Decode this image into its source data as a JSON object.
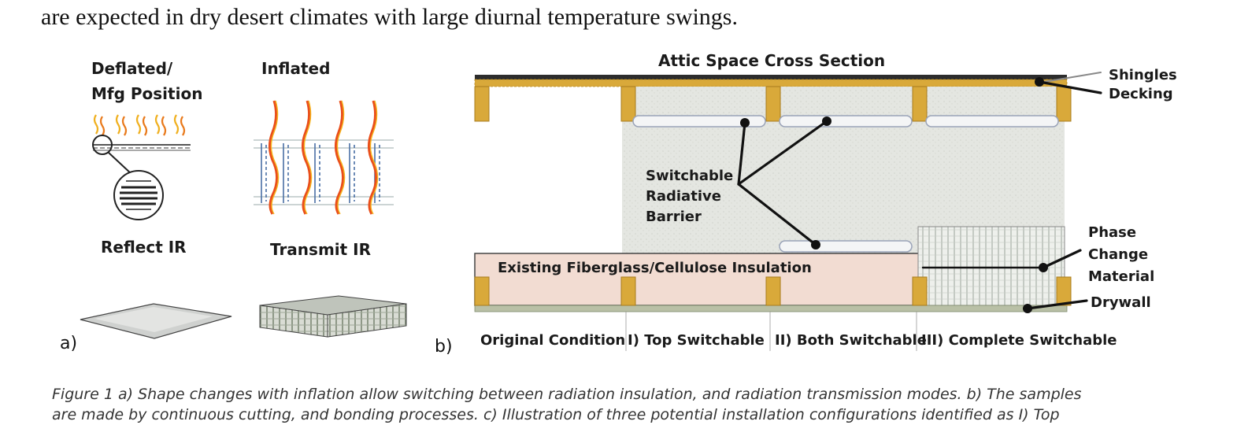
{
  "body_text": {
    "clipped_line": "are expected in dry desert climates with large diurnal temperature swings.",
    "partial_top": "... are expected in dry ... with large diurnal temperature swings."
  },
  "panel_a": {
    "col1_title_line1": "Deflated/",
    "col1_title_line2": "Mfg Position",
    "col2_title": "Inflated",
    "col1_caption": "Reflect IR",
    "col2_caption": "Transmit IR",
    "label": "a)"
  },
  "panel_b": {
    "title": "Attic Space Cross Section",
    "label": "b)",
    "callouts": {
      "shingles": "Shingles",
      "decking": "Decking",
      "switchable_line1": "Switchable",
      "switchable_line2": "Radiative",
      "switchable_line3": "Barrier",
      "pcm_line1": "Phase",
      "pcm_line2": "Change",
      "pcm_line3": "Material",
      "drywall": "Drywall",
      "insulation": "Existing Fiberglass/Cellulose Insulation"
    },
    "conditions": [
      "Original Condition",
      "I) Top Switchable",
      "II) Both Switchable",
      "III) Complete Switchable"
    ]
  },
  "caption": {
    "line1": "Figure 1 a) Shape changes with inflation allow switching between radiation insulation, and radiation transmission modes.  b) The samples",
    "line2": "are made by continuous cutting, and bonding processes.  c) Illustration of three potential installation configurations identified as I) Top"
  },
  "colors": {
    "roof": "#2c2c2c",
    "wood": "#d9a93a",
    "insulation": "#f2dcd2",
    "panel_fill": "#e9ebe6",
    "barrier_outline": "#9aa3b8",
    "callout": "#111111"
  }
}
